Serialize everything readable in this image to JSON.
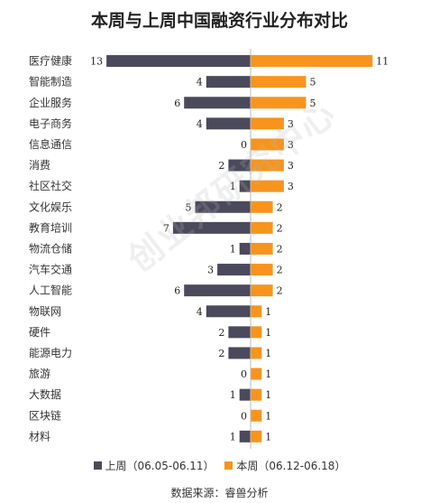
{
  "chart_data": {
    "type": "bar",
    "orientation": "horizontal-butterfly",
    "title": "本周与上周中国融资行业分布对比",
    "categories": [
      "医疗健康",
      "智能制造",
      "企业服务",
      "电子商务",
      "信息通信",
      "消费",
      "社区社交",
      "文化娱乐",
      "教育培训",
      "物流仓储",
      "汽车交通",
      "人工智能",
      "物联网",
      "硬件",
      "能源电力",
      "旅游",
      "大数据",
      "区块链",
      "材料"
    ],
    "series": [
      {
        "name": "上周（06.05-06.11）",
        "color": "#4a4a5c",
        "values": [
          13,
          4,
          6,
          4,
          0,
          2,
          1,
          5,
          7,
          1,
          3,
          6,
          4,
          2,
          2,
          0,
          1,
          0,
          1
        ]
      },
      {
        "name": "本周（06.12-06.18）",
        "color": "#f7941d",
        "values": [
          11,
          5,
          5,
          3,
          3,
          3,
          3,
          2,
          2,
          2,
          2,
          2,
          1,
          1,
          1,
          1,
          1,
          1,
          1
        ]
      }
    ],
    "legend_position": "bottom",
    "grid": false
  },
  "source_note": "数据来源：睿兽分析",
  "watermark": "创业邦研究中心"
}
